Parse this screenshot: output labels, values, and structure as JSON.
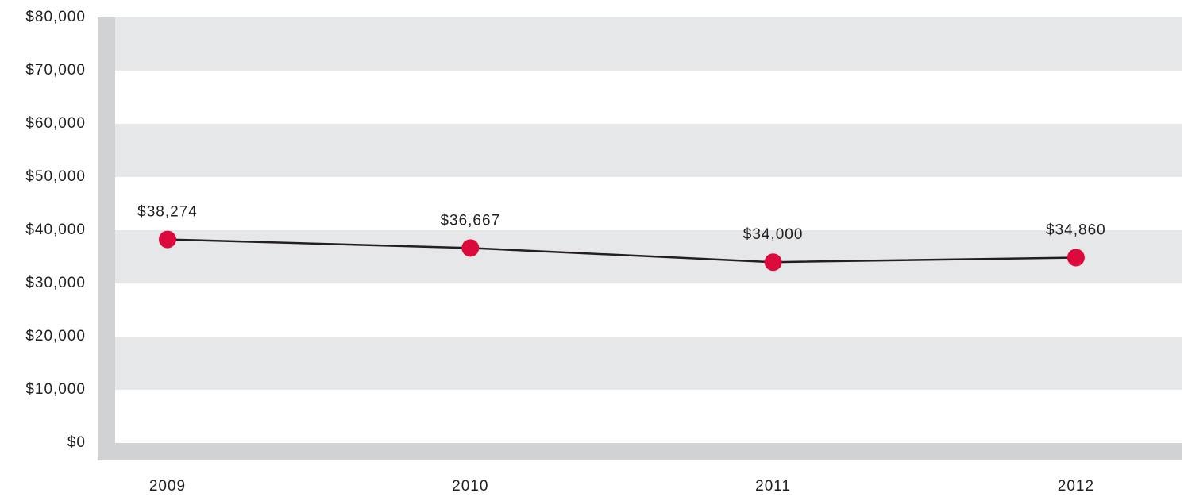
{
  "chart_data": {
    "type": "line",
    "categories": [
      "2009",
      "2010",
      "2011",
      "2012"
    ],
    "series": [
      {
        "color": "#231f20",
        "marker_color": "#dc0a3c",
        "values": [
          38274,
          36667,
          34000,
          34860
        ],
        "value_labels": [
          "$38,274",
          "$36,667",
          "$34,000",
          "$34,860"
        ]
      }
    ],
    "ylim": [
      0,
      80000
    ],
    "yticks": [
      {
        "value": 0,
        "label": "$0"
      },
      {
        "value": 10000,
        "label": "$10,000"
      },
      {
        "value": 20000,
        "label": "$20,000"
      },
      {
        "value": 30000,
        "label": "$30,000"
      },
      {
        "value": 40000,
        "label": "$40,000"
      },
      {
        "value": 50000,
        "label": "$50,000"
      },
      {
        "value": 60000,
        "label": "$60,000"
      },
      {
        "value": 70000,
        "label": "$70,000"
      },
      {
        "value": 80000,
        "label": "$80,000"
      }
    ],
    "grid": "bands",
    "band_color": "#e6e7e8",
    "axis_color": "#d1d2d4"
  }
}
